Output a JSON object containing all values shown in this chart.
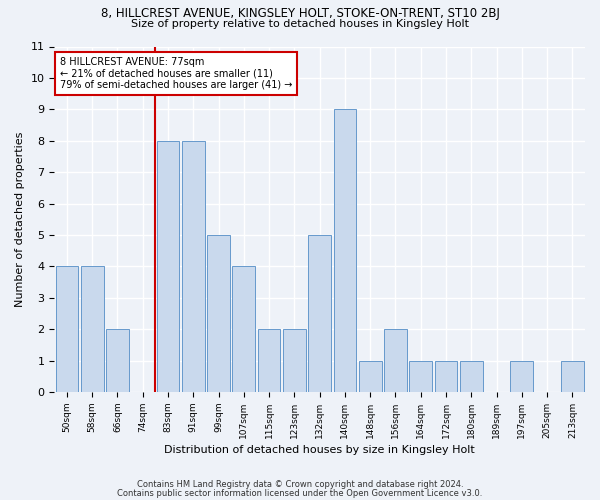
{
  "title_main": "8, HILLCREST AVENUE, KINGSLEY HOLT, STOKE-ON-TRENT, ST10 2BJ",
  "title_sub": "Size of property relative to detached houses in Kingsley Holt",
  "xlabel": "Distribution of detached houses by size in Kingsley Holt",
  "ylabel": "Number of detached properties",
  "categories": [
    "50sqm",
    "58sqm",
    "66sqm",
    "74sqm",
    "83sqm",
    "91sqm",
    "99sqm",
    "107sqm",
    "115sqm",
    "123sqm",
    "132sqm",
    "140sqm",
    "148sqm",
    "156sqm",
    "164sqm",
    "172sqm",
    "180sqm",
    "189sqm",
    "197sqm",
    "205sqm",
    "213sqm"
  ],
  "values": [
    4,
    4,
    2,
    0,
    8,
    8,
    5,
    4,
    2,
    2,
    5,
    9,
    1,
    2,
    1,
    1,
    1,
    0,
    1,
    0,
    1
  ],
  "bar_color": "#c9d9ed",
  "bar_edge_color": "#6699cc",
  "ref_line_index": 3,
  "ref_line_color": "#cc0000",
  "annotation_text": "8 HILLCREST AVENUE: 77sqm\n← 21% of detached houses are smaller (11)\n79% of semi-detached houses are larger (41) →",
  "annotation_box_color": "#ffffff",
  "annotation_box_edge": "#cc0000",
  "ylim": [
    0,
    11
  ],
  "yticks": [
    0,
    1,
    2,
    3,
    4,
    5,
    6,
    7,
    8,
    9,
    10,
    11
  ],
  "footnote1": "Contains HM Land Registry data © Crown copyright and database right 2024.",
  "footnote2": "Contains public sector information licensed under the Open Government Licence v3.0.",
  "bg_color": "#eef2f8",
  "grid_color": "#ffffff"
}
